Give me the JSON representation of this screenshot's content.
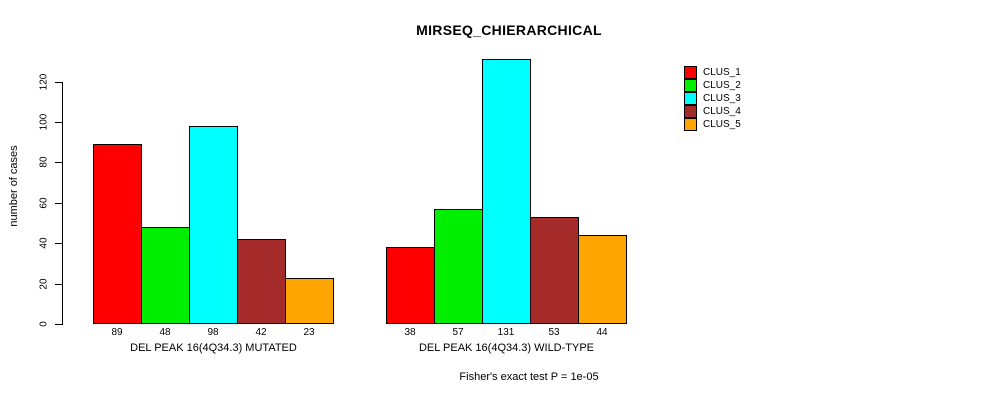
{
  "chart_data": {
    "type": "bar",
    "title": "MIRSEQ_CHIERARCHICAL",
    "ylabel": "number of cases",
    "xlabel": "",
    "yticks": [
      0,
      20,
      40,
      60,
      80,
      100,
      120
    ],
    "ylim": [
      0,
      133
    ],
    "grid": false,
    "legend_position": "right",
    "series": [
      "CLUS_1",
      "CLUS_2",
      "CLUS_3",
      "CLUS_4",
      "CLUS_5"
    ],
    "colors": [
      "#ff0000",
      "#00ee00",
      "#00ffff",
      "#a52a2a",
      "#ffa500"
    ],
    "groups": [
      {
        "label": "DEL PEAK 16(4Q34.3) MUTATED",
        "values": [
          89,
          48,
          98,
          42,
          23
        ]
      },
      {
        "label": "DEL PEAK 16(4Q34.3) WILD-TYPE",
        "values": [
          38,
          57,
          131,
          53,
          44
        ]
      }
    ],
    "bar_value_labels": [
      [
        89,
        48,
        98,
        42,
        23
      ],
      [
        38,
        57,
        131,
        53,
        44
      ]
    ],
    "annotation": "Fisher's exact test P = 1e-05"
  }
}
